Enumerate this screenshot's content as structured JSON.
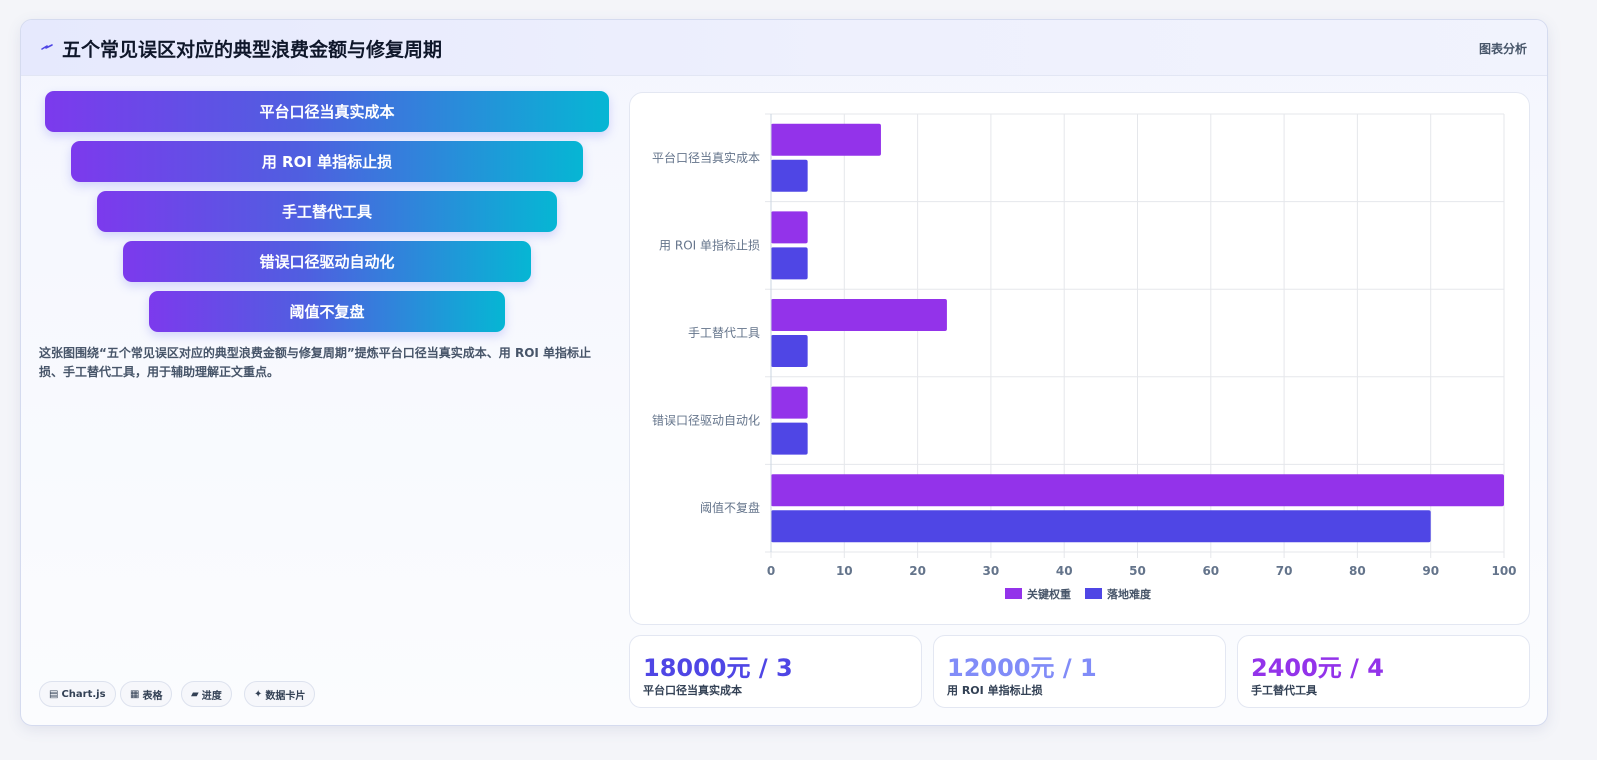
{
  "header": {
    "title": "五个常见误区对应的典型浪费金额与修复周期",
    "right_label": "图表分析",
    "icon": "sparkle-icon"
  },
  "funnel": {
    "steps": [
      "平台口径当真实成本",
      "用 ROI 单指标止损",
      "手工替代工具",
      "错误口径驱动自动化",
      "阈值不复盘"
    ]
  },
  "description": "这张图围绕“五个常见误区对应的典型浪费金额与修复周期”提炼平台口径当真实成本、用 ROI 单指标止损、手工替代工具，用于辅助理解正文重点。",
  "chips": [
    {
      "icon": "chart-icon",
      "glyph": "▤",
      "label": "Chart.js"
    },
    {
      "icon": "table-icon",
      "glyph": "▦",
      "label": "表格"
    },
    {
      "icon": "progress-icon",
      "glyph": "▰",
      "label": "进度"
    },
    {
      "icon": "card-icon",
      "glyph": "✦",
      "label": "数据卡片"
    }
  ],
  "stats": [
    {
      "value": "18000元 / 3",
      "label": "平台口径当真实成本",
      "color": "#4f46e5"
    },
    {
      "value": "12000元 / 1",
      "label": "用 ROI 单指标止损",
      "color": "#818cf8"
    },
    {
      "value": "2400元 / 4",
      "label": "手工替代工具",
      "color": "#9333ea"
    }
  ],
  "chart_data": {
    "type": "bar",
    "orientation": "horizontal",
    "categories": [
      "平台口径当真实成本",
      "用 ROI 单指标止损",
      "手工替代工具",
      "错误口径驱动自动化",
      "阈值不复盘"
    ],
    "series": [
      {
        "name": "关键权重",
        "values": [
          15,
          5,
          24,
          5,
          100
        ],
        "color": "#9333ea"
      },
      {
        "name": "落地难度",
        "values": [
          5,
          5,
          5,
          5,
          90
        ],
        "color": "#4f46e5"
      }
    ],
    "xlim": [
      0,
      100
    ],
    "xticks": [
      0,
      10,
      20,
      30,
      40,
      50,
      60,
      70,
      80,
      90,
      100
    ],
    "grid": true,
    "legend": "bottom"
  }
}
